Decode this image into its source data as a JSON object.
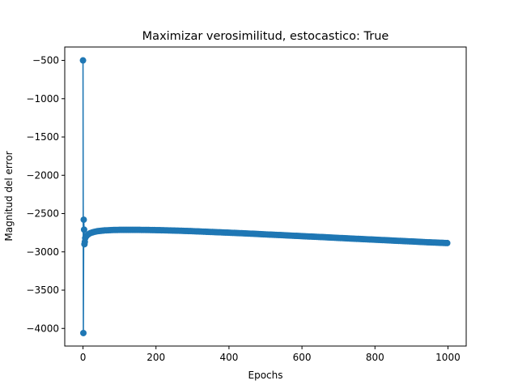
{
  "chart_data": {
    "type": "line",
    "title": "Maximizar verosimilitud, estocastico: True",
    "xlabel": "Epochs",
    "ylabel": "Magnitud del error",
    "xlim": [
      -50,
      1050
    ],
    "ylim": [
      -4230,
      -325
    ],
    "xticks": [
      0,
      200,
      400,
      600,
      800,
      1000
    ],
    "xtick_labels": [
      "0",
      "200",
      "400",
      "600",
      "800",
      "1000"
    ],
    "yticks": [
      -500,
      -1000,
      -1500,
      -2000,
      -2500,
      -3000,
      -3500,
      -4000
    ],
    "ytick_labels": [
      "−500",
      "−1000",
      "−1500",
      "−2000",
      "−2500",
      "−3000",
      "−3500",
      "−4000"
    ],
    "grid": false,
    "marker": "circle",
    "color": "#1f77b4",
    "series": [
      {
        "x": [
          0,
          1,
          2,
          3,
          4,
          5,
          6,
          8,
          10,
          15,
          20,
          30,
          40,
          50,
          60,
          80,
          100,
          120,
          150,
          175,
          200,
          250,
          300,
          350,
          400,
          450,
          500,
          550,
          600,
          650,
          700,
          750,
          800,
          850,
          900,
          950,
          998
        ],
        "y": [
          -500,
          -4060,
          -2580,
          -2710,
          -2900,
          -2870,
          -2820,
          -2800,
          -2790,
          -2770,
          -2755,
          -2740,
          -2730,
          -2725,
          -2720,
          -2715,
          -2713,
          -2713,
          -2713,
          -2714,
          -2716,
          -2722,
          -2730,
          -2740,
          -2750,
          -2760,
          -2772,
          -2783,
          -2795,
          -2806,
          -2818,
          -2830,
          -2841,
          -2853,
          -2864,
          -2876,
          -2885
        ]
      }
    ]
  }
}
